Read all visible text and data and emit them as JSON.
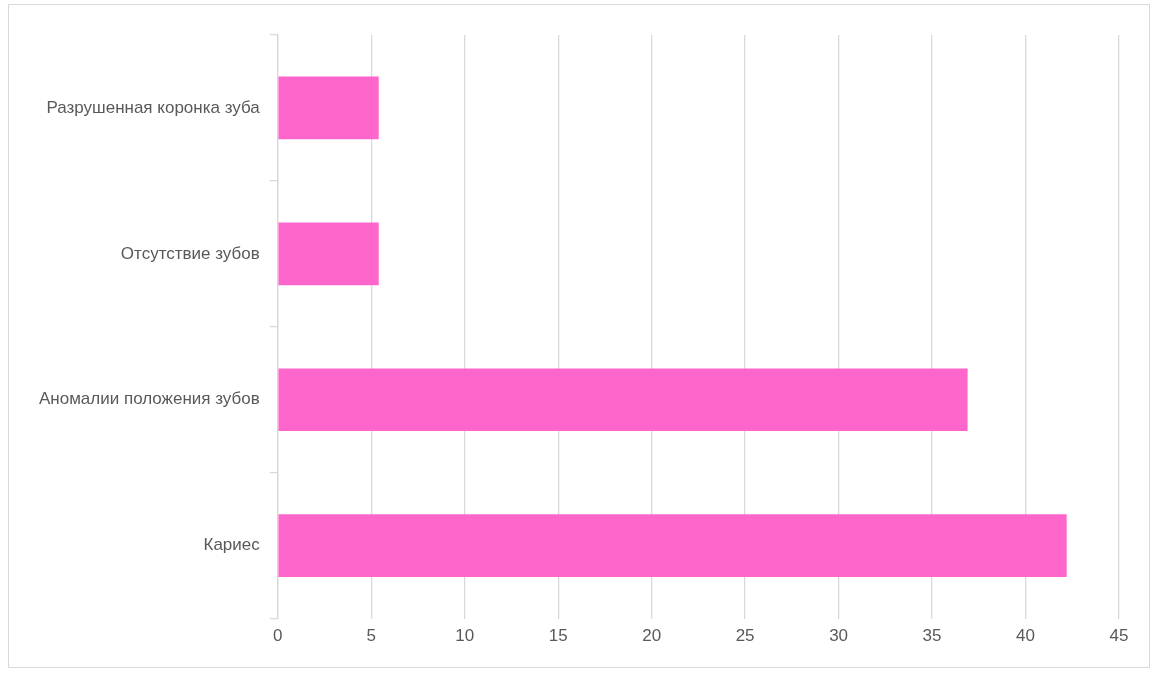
{
  "chart_data": {
    "type": "bar",
    "orientation": "horizontal",
    "categories": [
      "Разрушенная коронка зуба",
      "Отсутствие зубов",
      "Аномалии положения зубов",
      "Кариес"
    ],
    "values": [
      5.4,
      5.4,
      36.9,
      42.2
    ],
    "color": "#ff66cc",
    "xlim": [
      0,
      45
    ],
    "xticks": [
      0,
      5,
      10,
      15,
      20,
      25,
      30,
      35,
      40,
      45
    ],
    "grid": "x",
    "legend": false
  }
}
